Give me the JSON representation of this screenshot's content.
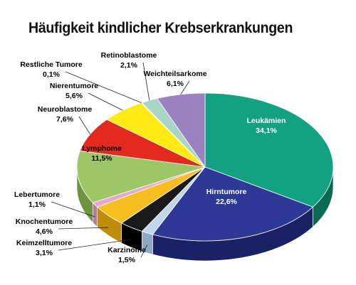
{
  "chart_data": {
    "type": "pie",
    "title": "Häufigkeit kindlicher Krebserkrankungen",
    "slices": [
      {
        "name": "Leukämien",
        "pct_label": "34,1%",
        "value": 34.1,
        "color": "#12A282",
        "side": "#0A6B55"
      },
      {
        "name": "Hirntumore",
        "pct_label": "22,6%",
        "value": 22.6,
        "color": "#2C3996",
        "side": "#1A2266"
      },
      {
        "name": "Karzinome",
        "pct_label": "1,5%",
        "value": 1.5,
        "color": "#BFD7EB",
        "side": "#8EA8BF"
      },
      {
        "name": "Keimzelltumore",
        "pct_label": "3,1%",
        "value": 3.1,
        "color": "#1A1A1A",
        "side": "#000000"
      },
      {
        "name": "Knochentumore",
        "pct_label": "4,6%",
        "value": 4.6,
        "color": "#F8BE1E",
        "side": "#C08D0A"
      },
      {
        "name": "Lebertumore",
        "pct_label": "1,1%",
        "value": 1.1,
        "color": "#E7A8CF",
        "side": "#B57A9E"
      },
      {
        "name": "Lymphome",
        "pct_label": "11,5%",
        "value": 11.5,
        "color": "#9CC764",
        "side": "#6E9440"
      },
      {
        "name": "Neuroblastome",
        "pct_label": "7,6%",
        "value": 7.6,
        "color": "#E32A1E",
        "side": "#A01810"
      },
      {
        "name": "Nierentumore",
        "pct_label": "5,6%",
        "value": 5.6,
        "color": "#FFEB13",
        "side": "#C7B400"
      },
      {
        "name": "Restliche Tumore",
        "pct_label": "0,1%",
        "value": 0.1,
        "color": "#6E6E6E",
        "side": "#444444"
      },
      {
        "name": "Retinoblastome",
        "pct_label": "2,1%",
        "value": 2.1,
        "color": "#A9D4C6",
        "side": "#779F92"
      },
      {
        "name": "Weichteilsarkome",
        "pct_label": "6,1%",
        "value": 6.1,
        "color": "#9A82C0",
        "side": "#6A5790"
      }
    ]
  }
}
